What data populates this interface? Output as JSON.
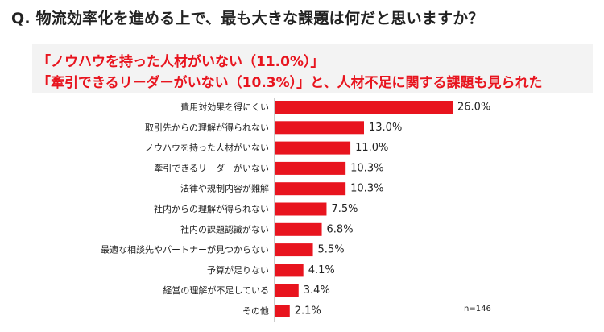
{
  "header": {
    "question": "Q. 物流効率化を進める上で、最も大きな課題は何だと思いますか？"
  },
  "highlight": {
    "line1": "「ノウハウを持った人材がいない（11.0%）」",
    "line2": "「牽引できるリーダーがいない（10.3%）」と、人材不足に関する課題も見られた"
  },
  "sample_size": "n=146",
  "colors": {
    "bar": "#e8141e",
    "accent_text": "#e8141e",
    "highlight_bg": "#f3f3f3"
  },
  "chart_data": {
    "type": "bar",
    "orientation": "horizontal",
    "categories": [
      "費用対効果を得にくい",
      "取引先からの理解が得られない",
      "ノウハウを持った人材がいない",
      "牽引できるリーダーがいない",
      "法律や規制内容が難解",
      "社内からの理解が得られない",
      "社内の課題認識がない",
      "最適な相談先やパートナーが見つからない",
      "予算が足りない",
      "経営の理解が不足している",
      "その他"
    ],
    "values": [
      26.0,
      13.0,
      11.0,
      10.3,
      10.3,
      7.5,
      6.8,
      5.5,
      4.1,
      3.4,
      2.1
    ],
    "value_labels": [
      "26.0%",
      "13.0%",
      "11.0%",
      "10.3%",
      "10.3%",
      "7.5%",
      "6.8%",
      "5.5%",
      "4.1%",
      "3.4%",
      "2.1%"
    ],
    "xlim": [
      0,
      26.0
    ],
    "grid": false,
    "legend": "none"
  }
}
